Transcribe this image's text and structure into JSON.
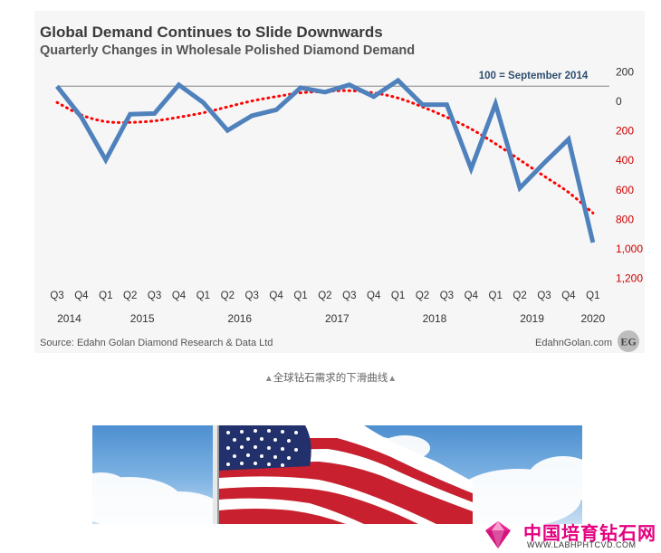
{
  "chart": {
    "title": "Global Demand Continues to Slide Downwards",
    "subtitle": "Quarterly Changes in Wholesale Polished Diamond Demand",
    "annotation": "100 = September 2014",
    "source": "Source: Edahn Golan Diamond Research & Data Ltd",
    "brand": "EdahnGolan.com",
    "brand_badge": "EG"
  },
  "chart_data": {
    "type": "line",
    "title": "Global Demand Continues to Slide Downwards",
    "subtitle": "Quarterly Changes in Wholesale Polished Diamond Demand",
    "quarters": [
      "Q3",
      "Q4",
      "Q1",
      "Q2",
      "Q3",
      "Q4",
      "Q1",
      "Q2",
      "Q3",
      "Q4",
      "Q1",
      "Q2",
      "Q3",
      "Q4",
      "Q1",
      "Q2",
      "Q3",
      "Q4",
      "Q1",
      "Q2",
      "Q3",
      "Q4",
      "Q1"
    ],
    "years": [
      {
        "label": "2014",
        "start": 0,
        "end": 1
      },
      {
        "label": "2015",
        "start": 2,
        "end": 5
      },
      {
        "label": "2016",
        "start": 6,
        "end": 9
      },
      {
        "label": "2017",
        "start": 10,
        "end": 13
      },
      {
        "label": "2018",
        "start": 14,
        "end": 17
      },
      {
        "label": "2019",
        "start": 18,
        "end": 21
      },
      {
        "label": "2020",
        "start": 22,
        "end": 22
      }
    ],
    "y_axis": {
      "min": -200,
      "max": 1200,
      "inverted": true,
      "ticks": [
        -200,
        0,
        200,
        400,
        600,
        800,
        1000,
        1200
      ],
      "tick_labels": [
        "200",
        "0",
        "200",
        "400",
        "600",
        "800",
        "1,000",
        "1,200"
      ],
      "tick_colors": [
        "#333333",
        "#333333",
        "#cc0000",
        "#cc0000",
        "#cc0000",
        "#cc0000",
        "#cc0000",
        "#cc0000"
      ],
      "position": "right"
    },
    "reference_line": -100,
    "series": [
      {
        "style": "solid",
        "color": "#4f81bd",
        "values": [
          -100,
          110,
          400,
          90,
          85,
          -110,
          10,
          200,
          100,
          60,
          -90,
          -60,
          -110,
          -30,
          -140,
          25,
          25,
          460,
          20,
          590,
          420,
          260,
          960
        ]
      },
      {
        "style": "dotted-trend",
        "color": "#ff0000",
        "values": [
          10,
          95,
          140,
          145,
          135,
          110,
          80,
          40,
          0,
          -30,
          -55,
          -65,
          -70,
          -55,
          -20,
          40,
          110,
          190,
          290,
          400,
          510,
          620,
          760
        ]
      }
    ],
    "grid": false,
    "legend": "none"
  },
  "caption": {
    "text": "全球钻石需求的下滑曲线",
    "marker_left": "▲",
    "marker_right": "▲"
  },
  "watermark": {
    "text": "中国培育钻石网",
    "url": "WWW.LABHPHTCVD.COM"
  },
  "colors": {
    "card_bg": "#f6f6f6",
    "demand_line": "#4f81bd",
    "trend_line": "#ff0000",
    "ref_line": "#9a9a9a",
    "brand_pink": "#e4007f"
  }
}
